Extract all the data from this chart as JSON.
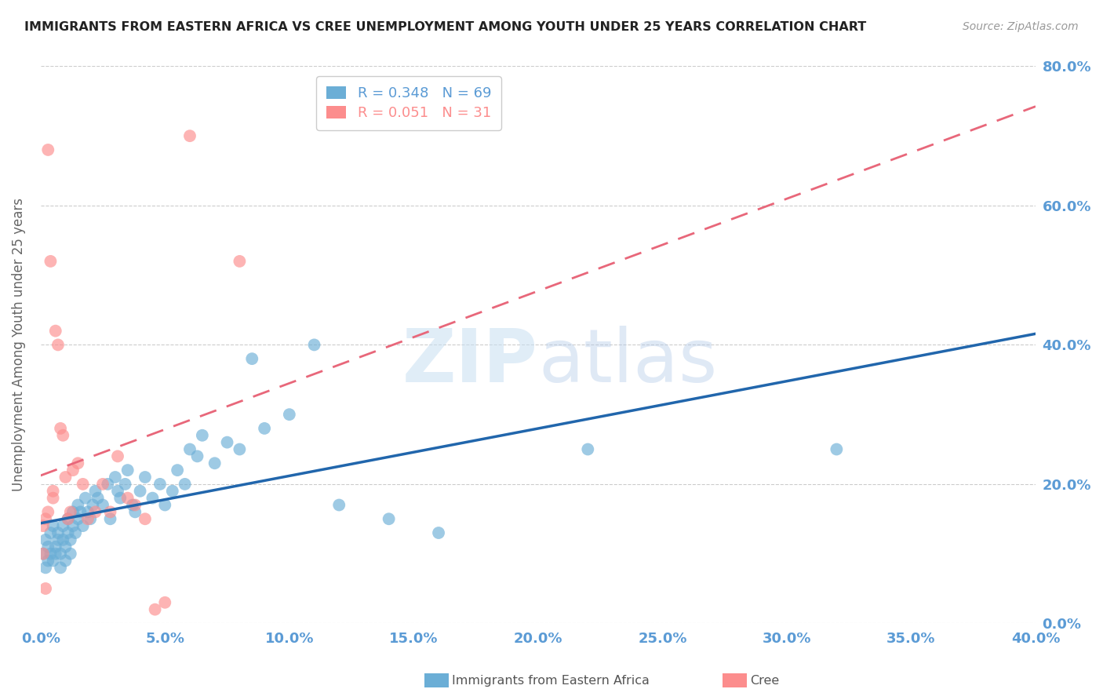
{
  "title": "IMMIGRANTS FROM EASTERN AFRICA VS CREE UNEMPLOYMENT AMONG YOUTH UNDER 25 YEARS CORRELATION CHART",
  "source": "Source: ZipAtlas.com",
  "ylabel": "Unemployment Among Youth under 25 years",
  "xlim": [
    0,
    0.4
  ],
  "ylim": [
    0,
    0.8
  ],
  "xticks": [
    0.0,
    0.05,
    0.1,
    0.15,
    0.2,
    0.25,
    0.3,
    0.35,
    0.4
  ],
  "yticks": [
    0.0,
    0.2,
    0.4,
    0.6,
    0.8
  ],
  "blue_R": 0.348,
  "blue_N": 69,
  "pink_R": 0.051,
  "pink_N": 31,
  "blue_color": "#6baed6",
  "pink_color": "#fc8d8d",
  "blue_line_color": "#2166ac",
  "pink_line_color": "#e8677a",
  "axis_color": "#5b9bd5",
  "legend_label_blue": "Immigrants from Eastern Africa",
  "legend_label_pink": "Cree",
  "watermark_zip": "ZIP",
  "watermark_atlas": "atlas",
  "blue_scatter_x": [
    0.001,
    0.002,
    0.002,
    0.003,
    0.003,
    0.004,
    0.004,
    0.005,
    0.005,
    0.006,
    0.006,
    0.007,
    0.007,
    0.008,
    0.008,
    0.009,
    0.009,
    0.01,
    0.01,
    0.011,
    0.011,
    0.012,
    0.012,
    0.013,
    0.013,
    0.014,
    0.015,
    0.015,
    0.016,
    0.017,
    0.018,
    0.019,
    0.02,
    0.021,
    0.022,
    0.023,
    0.025,
    0.027,
    0.028,
    0.03,
    0.031,
    0.032,
    0.034,
    0.035,
    0.037,
    0.038,
    0.04,
    0.042,
    0.045,
    0.048,
    0.05,
    0.053,
    0.055,
    0.058,
    0.06,
    0.063,
    0.065,
    0.07,
    0.075,
    0.08,
    0.085,
    0.09,
    0.1,
    0.11,
    0.12,
    0.14,
    0.16,
    0.22,
    0.32
  ],
  "blue_scatter_y": [
    0.1,
    0.08,
    0.12,
    0.09,
    0.11,
    0.13,
    0.1,
    0.14,
    0.09,
    0.11,
    0.1,
    0.12,
    0.13,
    0.08,
    0.1,
    0.14,
    0.12,
    0.09,
    0.11,
    0.13,
    0.15,
    0.1,
    0.12,
    0.16,
    0.14,
    0.13,
    0.17,
    0.15,
    0.16,
    0.14,
    0.18,
    0.16,
    0.15,
    0.17,
    0.19,
    0.18,
    0.17,
    0.2,
    0.15,
    0.21,
    0.19,
    0.18,
    0.2,
    0.22,
    0.17,
    0.16,
    0.19,
    0.21,
    0.18,
    0.2,
    0.17,
    0.19,
    0.22,
    0.2,
    0.25,
    0.24,
    0.27,
    0.23,
    0.26,
    0.25,
    0.38,
    0.28,
    0.3,
    0.4,
    0.17,
    0.15,
    0.13,
    0.25,
    0.25
  ],
  "pink_scatter_x": [
    0.001,
    0.001,
    0.002,
    0.002,
    0.003,
    0.003,
    0.004,
    0.005,
    0.005,
    0.006,
    0.007,
    0.008,
    0.009,
    0.01,
    0.011,
    0.012,
    0.013,
    0.015,
    0.017,
    0.019,
    0.022,
    0.025,
    0.028,
    0.031,
    0.035,
    0.038,
    0.042,
    0.046,
    0.05,
    0.06,
    0.08
  ],
  "pink_scatter_y": [
    0.14,
    0.1,
    0.15,
    0.05,
    0.16,
    0.68,
    0.52,
    0.18,
    0.19,
    0.42,
    0.4,
    0.28,
    0.27,
    0.21,
    0.15,
    0.16,
    0.22,
    0.23,
    0.2,
    0.15,
    0.16,
    0.2,
    0.16,
    0.24,
    0.18,
    0.17,
    0.15,
    0.02,
    0.03,
    0.7,
    0.52
  ]
}
